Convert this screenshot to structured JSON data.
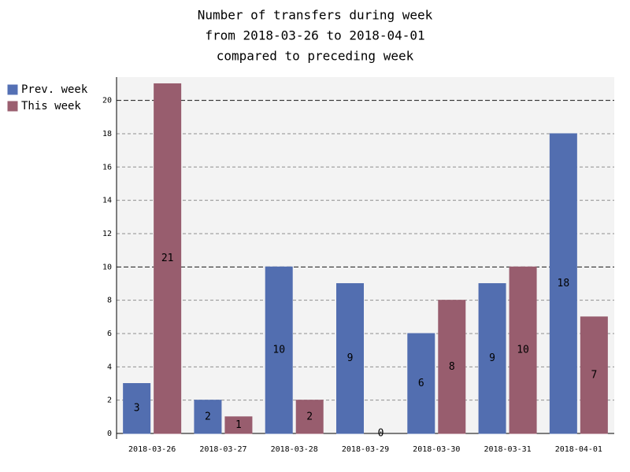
{
  "chart_data": {
    "type": "bar",
    "title": [
      "Number of transfers during week",
      "from 2018-03-26 to 2018-04-01",
      "compared to preceding week"
    ],
    "categories": [
      "2018-03-26",
      "2018-03-27",
      "2018-03-28",
      "2018-03-29",
      "2018-03-30",
      "2018-03-31",
      "2018-04-01"
    ],
    "series": [
      {
        "name": "Prev. week",
        "color": "#5470b4",
        "values": [
          3,
          2,
          10,
          9,
          6,
          9,
          18
        ]
      },
      {
        "name": "This week",
        "color": "#9b5f70",
        "values": [
          21,
          1,
          2,
          0,
          8,
          10,
          7
        ]
      }
    ],
    "ylim": [
      0,
      21.4
    ],
    "yticks": [
      0,
      2,
      4,
      6,
      8,
      10,
      12,
      14,
      16,
      18,
      20
    ],
    "grid": true,
    "legend": "left"
  }
}
